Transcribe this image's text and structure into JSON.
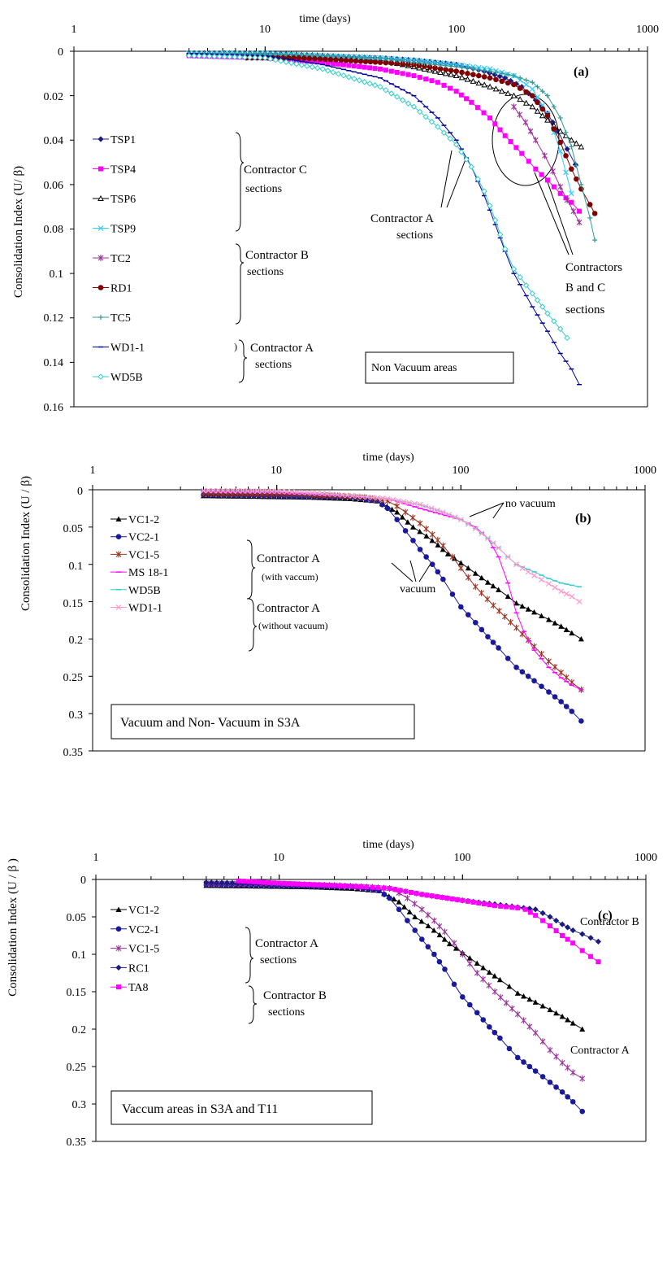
{
  "chart_data": [
    {
      "type": "line",
      "panel": "(a)",
      "xscale": "log",
      "xlim": [
        1,
        1000
      ],
      "ylim": [
        0,
        0.16
      ],
      "y_inverted": true,
      "xlabel": "time (days)",
      "ylabel": "Consolidation Index (U/ β)",
      "x_ticks": [
        "1",
        "10",
        "100",
        "1000"
      ],
      "y_ticks": [
        "0",
        "0.02",
        "0.04",
        "0.06",
        "0.08",
        "0.1",
        "0.12",
        "0.14",
        "0.16"
      ],
      "legend_position": "left",
      "series": [
        {
          "name": "TSP1",
          "color": "#1a1a80",
          "marker": "diamond",
          "x": [
            4,
            10,
            20,
            40,
            60,
            100,
            140,
            180,
            220,
            260,
            300,
            340,
            380,
            420
          ],
          "y": [
            0.001,
            0.001,
            0.002,
            0.003,
            0.004,
            0.006,
            0.009,
            0.012,
            0.016,
            0.022,
            0.028,
            0.036,
            0.044,
            0.051
          ]
        },
        {
          "name": "TSP4",
          "color": "#ff00ff",
          "marker": "square",
          "x": [
            4,
            10,
            20,
            40,
            60,
            80,
            100,
            120,
            150,
            180,
            220,
            260,
            300,
            350,
            400,
            440
          ],
          "y": [
            0.002,
            0.003,
            0.005,
            0.008,
            0.011,
            0.014,
            0.018,
            0.023,
            0.03,
            0.038,
            0.046,
            0.053,
            0.058,
            0.064,
            0.068,
            0.072
          ]
        },
        {
          "name": "TSP6",
          "color": "#000000",
          "marker": "triangle-open",
          "x": [
            4,
            10,
            20,
            40,
            60,
            100,
            150,
            200,
            250,
            300,
            350,
            400,
            450
          ],
          "y": [
            0.001,
            0.001,
            0.002,
            0.004,
            0.007,
            0.011,
            0.016,
            0.02,
            0.025,
            0.031,
            0.036,
            0.04,
            0.043
          ]
        },
        {
          "name": "TSP9",
          "color": "#33ccff",
          "marker": "x",
          "x": [
            4,
            10,
            20,
            40,
            60,
            100,
            150,
            200,
            250,
            300,
            350,
            400
          ],
          "y": [
            0.001,
            0.001,
            0.002,
            0.003,
            0.004,
            0.006,
            0.008,
            0.011,
            0.017,
            0.028,
            0.045,
            0.064
          ]
        },
        {
          "name": "TC2",
          "color": "#993399",
          "marker": "star",
          "x": [
            200,
            230,
            260,
            290,
            320,
            350,
            380,
            410,
            440
          ],
          "y": [
            0.025,
            0.032,
            0.04,
            0.047,
            0.054,
            0.061,
            0.067,
            0.072,
            0.077
          ]
        },
        {
          "name": "RD1",
          "color": "#800000",
          "marker": "circle",
          "x": [
            8,
            15,
            25,
            40,
            60,
            100,
            150,
            200,
            250,
            300,
            350,
            400,
            450,
            500,
            530
          ],
          "y": [
            0.003,
            0.003,
            0.004,
            0.005,
            0.006,
            0.009,
            0.012,
            0.015,
            0.02,
            0.029,
            0.041,
            0.053,
            0.062,
            0.069,
            0.073
          ]
        },
        {
          "name": "TC5",
          "color": "#339999",
          "marker": "plus",
          "x": [
            4,
            10,
            20,
            40,
            60,
            100,
            150,
            200,
            250,
            300,
            350,
            400,
            450,
            500,
            530
          ],
          "y": [
            0.001,
            0.001,
            0.002,
            0.003,
            0.005,
            0.007,
            0.009,
            0.011,
            0.014,
            0.02,
            0.03,
            0.043,
            0.06,
            0.075,
            0.085
          ]
        },
        {
          "name": "WD1-1",
          "color": "#000099",
          "marker": "dash",
          "x": [
            4,
            10,
            20,
            40,
            60,
            80,
            100,
            120,
            140,
            160,
            180,
            200,
            250,
            300,
            350,
            400,
            440
          ],
          "y": [
            0.001,
            0.002,
            0.006,
            0.012,
            0.02,
            0.03,
            0.04,
            0.052,
            0.065,
            0.078,
            0.09,
            0.1,
            0.115,
            0.126,
            0.136,
            0.143,
            0.15
          ]
        },
        {
          "name": "WD5B",
          "color": "#33cccc",
          "marker": "diamond-open",
          "x": [
            4,
            10,
            20,
            40,
            60,
            80,
            100,
            120,
            140,
            160,
            180,
            200,
            250,
            300,
            350,
            380
          ],
          "y": [
            0.002,
            0.003,
            0.008,
            0.016,
            0.025,
            0.034,
            0.042,
            0.052,
            0.063,
            0.076,
            0.089,
            0.098,
            0.109,
            0.118,
            0.125,
            0.129
          ]
        }
      ],
      "annotations": {
        "panel_label": "(a)",
        "legend_groups": [
          {
            "text": "Contractor C",
            "sub": "sections"
          },
          {
            "text": "Contractor B",
            "sub": "sections"
          },
          {
            "text": "Contractor A",
            "sub": "sections"
          }
        ],
        "callout_a": "Contractor A",
        "callout_a_sub": "sections",
        "callout_bc": "Contractors",
        "callout_bc_2": "B and C",
        "callout_bc_3": "sections",
        "box": "Non Vacuum areas",
        "paren": ")"
      }
    },
    {
      "type": "line",
      "panel": "(b)",
      "xscale": "log",
      "xlim": [
        1,
        1000
      ],
      "ylim": [
        0,
        0.35
      ],
      "y_inverted": true,
      "xlabel": "time (days)",
      "ylabel": "Consolidation Index (U / β)",
      "x_ticks": [
        "1",
        "10",
        "100",
        "1000"
      ],
      "y_ticks": [
        "0",
        "0.05",
        "0.1",
        "0.15",
        "0.2",
        "0.25",
        "0.3",
        "0.35"
      ],
      "legend_position": "left",
      "series": [
        {
          "name": "VC1-2",
          "color": "#000000",
          "marker": "triangle",
          "x": [
            4,
            8,
            15,
            25,
            35,
            45,
            55,
            65,
            75,
            85,
            100,
            120,
            140,
            160,
            180,
            200,
            250,
            300,
            350,
            400,
            450
          ],
          "y": [
            0.008,
            0.009,
            0.01,
            0.012,
            0.015,
            0.03,
            0.05,
            0.062,
            0.074,
            0.086,
            0.098,
            0.112,
            0.124,
            0.134,
            0.143,
            0.152,
            0.164,
            0.174,
            0.183,
            0.192,
            0.2
          ]
        },
        {
          "name": "VC2-1",
          "color": "#1a1a99",
          "marker": "circle",
          "x": [
            4,
            8,
            15,
            25,
            35,
            40,
            45,
            50,
            55,
            60,
            70,
            80,
            90,
            100,
            120,
            140,
            160,
            180,
            200,
            250,
            300,
            350,
            400,
            450
          ],
          "y": [
            0.007,
            0.008,
            0.009,
            0.01,
            0.015,
            0.025,
            0.04,
            0.055,
            0.068,
            0.08,
            0.1,
            0.12,
            0.14,
            0.157,
            0.178,
            0.197,
            0.212,
            0.226,
            0.238,
            0.256,
            0.271,
            0.284,
            0.297,
            0.31
          ]
        },
        {
          "name": "VC1-5",
          "color": "#993322",
          "marker": "star",
          "x": [
            4,
            10,
            20,
            30,
            40,
            45,
            50,
            60,
            70,
            80,
            90,
            100,
            120,
            150,
            200,
            250,
            300,
            350,
            400,
            450
          ],
          "y": [
            0.005,
            0.006,
            0.008,
            0.01,
            0.015,
            0.022,
            0.03,
            0.045,
            0.06,
            0.075,
            0.09,
            0.105,
            0.13,
            0.155,
            0.185,
            0.21,
            0.23,
            0.245,
            0.258,
            0.268
          ]
        },
        {
          "name": "MS 18-1",
          "color": "#ff00ff",
          "marker": "dash",
          "x": [
            4,
            10,
            20,
            40,
            60,
            100,
            120,
            140,
            160,
            180,
            200,
            220,
            250,
            300,
            350,
            400,
            450
          ],
          "y": [
            0.002,
            0.004,
            0.007,
            0.012,
            0.025,
            0.04,
            0.05,
            0.065,
            0.09,
            0.125,
            0.165,
            0.19,
            0.215,
            0.238,
            0.252,
            0.262,
            0.268
          ]
        },
        {
          "name": "WD5B",
          "color": "#33cccc",
          "marker": "dash",
          "x": [
            4,
            10,
            20,
            40,
            60,
            80,
            100,
            120,
            140,
            160,
            180,
            200,
            250,
            300,
            350,
            400,
            440
          ],
          "y": [
            0.001,
            0.002,
            0.006,
            0.012,
            0.02,
            0.03,
            0.04,
            0.052,
            0.065,
            0.078,
            0.09,
            0.1,
            0.11,
            0.119,
            0.125,
            0.128,
            0.13
          ]
        },
        {
          "name": "WD1-1",
          "color": "#ff99cc",
          "marker": "x",
          "x": [
            4,
            10,
            20,
            40,
            60,
            80,
            100,
            120,
            140,
            160,
            180,
            200,
            250,
            300,
            350,
            400,
            440
          ],
          "y": [
            0.001,
            0.002,
            0.006,
            0.012,
            0.02,
            0.03,
            0.04,
            0.052,
            0.065,
            0.078,
            0.09,
            0.1,
            0.115,
            0.126,
            0.136,
            0.143,
            0.15
          ]
        }
      ],
      "annotations": {
        "panel_label": "(b)",
        "legend_groups": [
          {
            "text": "Contractor A",
            "sub": "(with vaccum)"
          },
          {
            "text": "Contractor A",
            "sub": "(without vacuum)"
          }
        ],
        "callout_novac": "no vacuum",
        "callout_vac": "vacuum",
        "box": "Vacuum and Non- Vacuum in S3A"
      }
    },
    {
      "type": "line",
      "panel": "(c)",
      "xscale": "log",
      "xlim": [
        1,
        1000
      ],
      "ylim": [
        0,
        0.35
      ],
      "y_inverted": true,
      "xlabel": "time (days)",
      "ylabel": "Consolidation Index (U /  β )",
      "x_ticks": [
        "1",
        "10",
        "100",
        "1000"
      ],
      "y_ticks": [
        "0",
        "0.05",
        "0.1",
        "0.15",
        "0.2",
        "0.25",
        "0.3",
        "0.35"
      ],
      "legend_position": "left",
      "series": [
        {
          "name": "VC1-2",
          "color": "#000000",
          "marker": "triangle",
          "x": [
            4,
            8,
            15,
            25,
            35,
            45,
            55,
            65,
            75,
            85,
            100,
            120,
            140,
            160,
            180,
            200,
            250,
            300,
            350,
            400,
            450
          ],
          "y": [
            0.008,
            0.009,
            0.01,
            0.012,
            0.015,
            0.03,
            0.05,
            0.062,
            0.074,
            0.086,
            0.098,
            0.112,
            0.124,
            0.134,
            0.143,
            0.152,
            0.164,
            0.174,
            0.183,
            0.192,
            0.2
          ]
        },
        {
          "name": "VC2-1",
          "color": "#1a1a99",
          "marker": "circle",
          "x": [
            4,
            8,
            15,
            25,
            35,
            40,
            45,
            50,
            55,
            60,
            70,
            80,
            90,
            100,
            120,
            140,
            160,
            180,
            200,
            250,
            300,
            350,
            400,
            450
          ],
          "y": [
            0.007,
            0.008,
            0.009,
            0.01,
            0.015,
            0.025,
            0.04,
            0.055,
            0.068,
            0.08,
            0.1,
            0.12,
            0.14,
            0.157,
            0.178,
            0.197,
            0.212,
            0.226,
            0.238,
            0.256,
            0.271,
            0.284,
            0.297,
            0.31
          ]
        },
        {
          "name": "VC1-5",
          "color": "#993399",
          "marker": "star",
          "x": [
            4,
            10,
            20,
            30,
            40,
            45,
            50,
            60,
            70,
            80,
            90,
            100,
            120,
            150,
            200,
            250,
            300,
            350,
            400,
            450
          ],
          "y": [
            0.005,
            0.006,
            0.008,
            0.01,
            0.012,
            0.018,
            0.025,
            0.04,
            0.055,
            0.07,
            0.085,
            0.1,
            0.125,
            0.15,
            0.18,
            0.205,
            0.228,
            0.245,
            0.258,
            0.266
          ]
        },
        {
          "name": "RC1",
          "color": "#1a1a80",
          "marker": "diamond",
          "x": [
            4,
            10,
            20,
            30,
            40,
            60,
            100,
            150,
            200,
            250,
            300,
            350,
            400,
            450,
            500,
            550
          ],
          "y": [
            0.004,
            0.006,
            0.008,
            0.01,
            0.012,
            0.02,
            0.028,
            0.033,
            0.037,
            0.04,
            0.05,
            0.06,
            0.068,
            0.073,
            0.078,
            0.083
          ]
        },
        {
          "name": "TA8",
          "color": "#ff00ff",
          "marker": "square",
          "x": [
            6,
            10,
            20,
            30,
            40,
            60,
            100,
            150,
            200,
            220,
            250,
            300,
            350,
            400,
            450,
            500,
            550
          ],
          "y": [
            0.002,
            0.005,
            0.008,
            0.01,
            0.012,
            0.02,
            0.028,
            0.035,
            0.038,
            0.04,
            0.048,
            0.062,
            0.075,
            0.085,
            0.095,
            0.103,
            0.11
          ]
        }
      ],
      "annotations": {
        "panel_label": "(c)",
        "legend_groups": [
          {
            "text": "Contractor A",
            "sub": "sections"
          },
          {
            "text": "Contractor B",
            "sub": "sections"
          }
        ],
        "callout_b": "Contractor B",
        "callout_a": "Contractor A",
        "box": "Vaccum areas in S3A and T11"
      }
    }
  ]
}
